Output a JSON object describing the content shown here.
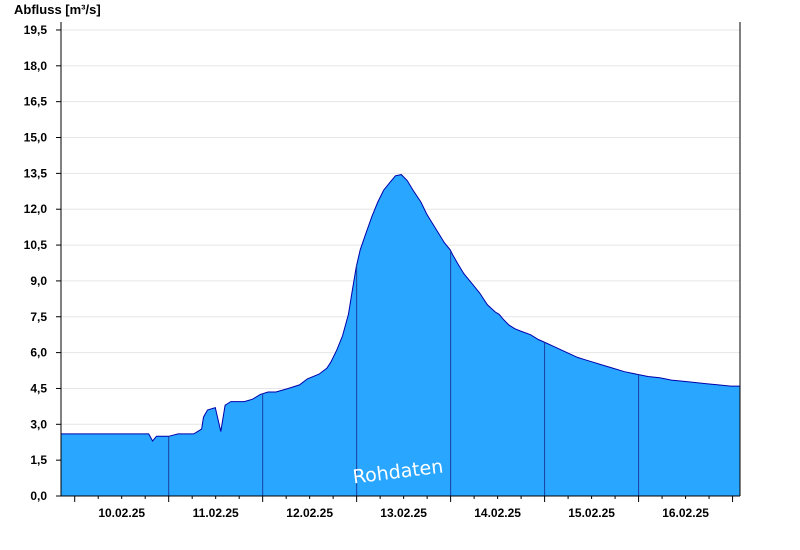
{
  "chart_data": {
    "type": "area",
    "ylabel": "Abfluss [m³/s]",
    "watermark": "Rohdaten",
    "ylim": [
      0,
      19.5
    ],
    "yticks": [
      "0,0",
      "1,5",
      "3,0",
      "4,5",
      "6,0",
      "7,5",
      "9,0",
      "10,5",
      "12,0",
      "13,5",
      "15,0",
      "16,5",
      "18,0",
      "19,5"
    ],
    "ytick_values": [
      0,
      1.5,
      3.0,
      4.5,
      6.0,
      7.5,
      9.0,
      10.5,
      12.0,
      13.5,
      15.0,
      16.5,
      18.0,
      19.5
    ],
    "xlim": [
      "09.02.25 20:30",
      "16.02.25 22:00"
    ],
    "x_tick_labels": [
      "10.02.25",
      "11.02.25",
      "12.02.25",
      "13.02.25",
      "14.02.25",
      "15.02.25",
      "16.02.25"
    ],
    "day_boundaries": [
      "11.02.25 00:00",
      "12.02.25 00:00",
      "13.02.25 00:00",
      "14.02.25 00:00",
      "15.02.25 00:00",
      "16.02.25 00:00"
    ],
    "grid": true,
    "fill_color": "#29a6ff",
    "line_color": "#0000aa",
    "series": [
      {
        "x_hours_from_2025-02-10T00": [
          -3.5,
          18.9,
          19.9,
          20.9,
          21.9,
          22.4,
          24.0,
          26.4,
          26.9,
          30.4,
          32.4,
          32.9,
          33.9,
          35.9,
          37.3,
          38.4,
          38.9,
          39.9,
          41.3,
          43.3,
          45.4,
          47.4,
          49.4,
          51.4,
          54.5,
          57.4,
          59.4,
          62.4,
          64.4,
          65.4,
          66.9,
          68.4,
          69.9,
          70.9,
          71.9,
          72.9,
          74.4,
          75.9,
          77.4,
          78.9,
          80.4,
          81.9,
          83.4,
          84.9,
          86.4,
          88.4,
          89.9,
          91.4,
          92.9,
          94.4,
          95.9,
          96.5,
          97.9,
          99.4,
          101.4,
          103.4,
          105.4,
          107.4,
          108.4,
          109.4,
          110.9,
          112.4,
          113.9,
          116.4,
          118.4,
          120.4,
          122.4,
          124.4,
          126.4,
          128.4,
          130.4,
          132.4,
          134.4,
          137.4,
          140.4,
          143.4,
          146.4,
          149.4,
          152.4,
          155.4,
          158.4,
          161.4,
          164.4,
          167.5,
          169.9
        ],
        "y_m3s": [
          2.6,
          2.6,
          2.3,
          2.5,
          2.5,
          2.5,
          2.5,
          2.6,
          2.6,
          2.6,
          2.8,
          3.3,
          3.6,
          3.7,
          2.7,
          3.8,
          3.85,
          3.95,
          3.95,
          3.95,
          4.05,
          4.25,
          4.35,
          4.35,
          4.5,
          4.65,
          4.9,
          5.1,
          5.35,
          5.6,
          6.1,
          6.7,
          7.6,
          8.6,
          9.6,
          10.3,
          11.0,
          11.7,
          12.3,
          12.8,
          13.1,
          13.4,
          13.45,
          13.2,
          12.8,
          12.3,
          11.8,
          11.4,
          11.0,
          10.6,
          10.3,
          10.1,
          9.7,
          9.3,
          8.9,
          8.5,
          8.0,
          7.7,
          7.6,
          7.4,
          7.15,
          7.0,
          6.9,
          6.75,
          6.55,
          6.4,
          6.25,
          6.1,
          5.95,
          5.8,
          5.7,
          5.6,
          5.5,
          5.35,
          5.2,
          5.1,
          5.0,
          4.95,
          4.85,
          4.8,
          4.75,
          4.7,
          4.65,
          4.6,
          4.6
        ]
      }
    ]
  }
}
